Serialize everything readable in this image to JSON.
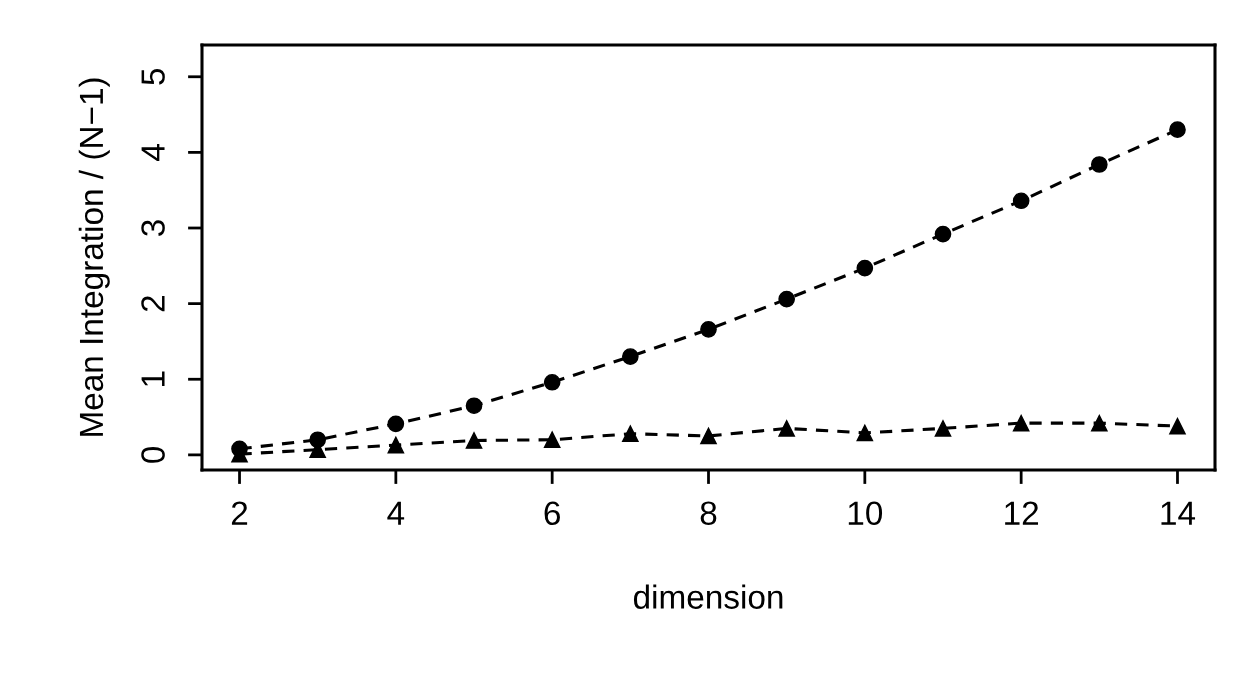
{
  "chart_data": {
    "type": "line",
    "xlabel": "dimension",
    "ylabel": "Mean Integration / (N−1)",
    "x": [
      2,
      3,
      4,
      5,
      6,
      7,
      8,
      9,
      10,
      11,
      12,
      13,
      14
    ],
    "series": [
      {
        "color": "#000000",
        "marker": "circle",
        "values": [
          0.08,
          0.2,
          0.41,
          0.65,
          0.96,
          1.3,
          1.66,
          2.06,
          2.47,
          2.92,
          3.36,
          3.84,
          4.3
        ]
      },
      {
        "color": "#000000",
        "marker": "triangle",
        "values": [
          0.01,
          0.07,
          0.13,
          0.19,
          0.2,
          0.28,
          0.25,
          0.35,
          0.29,
          0.35,
          0.42,
          0.42,
          0.38
        ]
      }
    ],
    "line_style": "dashed",
    "grid": false,
    "xlim": [
      1.52,
      14.48
    ],
    "ylim": [
      -0.2,
      5.42
    ],
    "xticks": [
      2,
      4,
      6,
      8,
      10,
      12,
      14
    ],
    "yticks": [
      0,
      1,
      2,
      3,
      4,
      5
    ]
  }
}
